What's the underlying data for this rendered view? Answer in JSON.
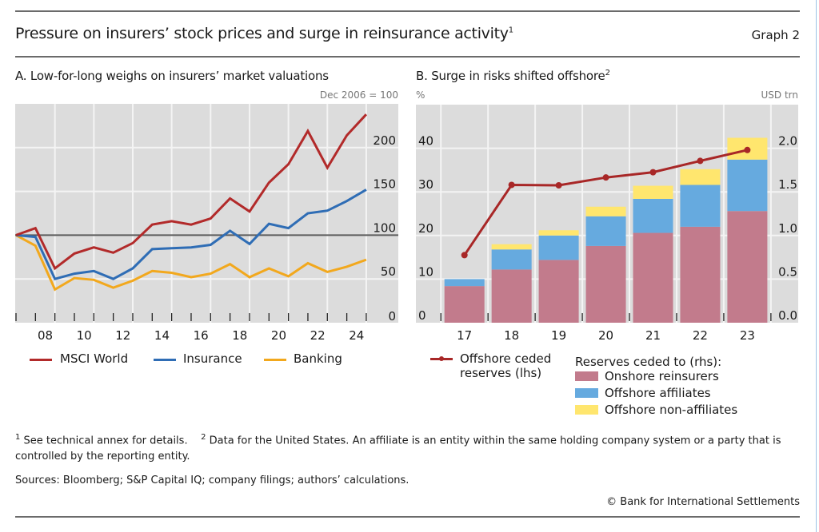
{
  "header": {
    "title": "Pressure on insurers’ stock prices and surge in reinsurance activity",
    "title_footnote": "1",
    "graph_label": "Graph 2"
  },
  "footer": {
    "note1_marker": "1",
    "note1": "See technical annex for details.",
    "note2_marker": "2",
    "note2": "Data for the United States. An affiliate is an entity within the same holding company system or a party that is controlled by the reporting entity.",
    "sources": "Sources: Bloomberg; S&P Capital IQ; company filings; authors’ calculations.",
    "copyright": "© Bank for International Settlements"
  },
  "colors": {
    "plot_bg": "#dcdcdc",
    "grid": "#f4f4f4",
    "msci": "#b22a2a",
    "insurance": "#2f6db5",
    "banking": "#f2a81d",
    "offshore_line": "#a82727",
    "onshore": "#c27b8c",
    "offshore_aff": "#66aadf",
    "offshore_nonaff": "#ffe66e"
  },
  "chart_data": [
    {
      "type": "line",
      "title": "A. Low-for-long weighs on insurers’ market valuations",
      "unit_label": "Dec 2006 = 100",
      "x": [
        "Dec 2006",
        "2007",
        "2008",
        "2009",
        "2010",
        "2011",
        "2012",
        "2013",
        "2014",
        "2015",
        "2016",
        "2017",
        "2018",
        "2019",
        "2020",
        "2021",
        "2022",
        "2023",
        "2024"
      ],
      "xtick_labels": [
        "08",
        "10",
        "12",
        "14",
        "16",
        "18",
        "20",
        "22",
        "24"
      ],
      "yticks": [
        0,
        50,
        100,
        150,
        200
      ],
      "ylim": [
        0,
        250
      ],
      "reference_line": 100,
      "grid": true,
      "legend_position": "bottom",
      "series": [
        {
          "name": "MSCI World",
          "color_key": "msci",
          "values": [
            100,
            108,
            62,
            79,
            86,
            80,
            91,
            112,
            116,
            112,
            119,
            142,
            127,
            160,
            181,
            219,
            177,
            214,
            238
          ]
        },
        {
          "name": "Insurance",
          "color_key": "insurance",
          "values": [
            100,
            98,
            50,
            56,
            59,
            50,
            62,
            84,
            85,
            86,
            89,
            105,
            90,
            113,
            108,
            125,
            128,
            139,
            152
          ]
        },
        {
          "name": "Banking",
          "color_key": "banking",
          "values": [
            100,
            88,
            38,
            51,
            49,
            40,
            48,
            59,
            57,
            52,
            56,
            67,
            52,
            62,
            53,
            68,
            58,
            64,
            72
          ]
        }
      ]
    },
    {
      "type": "bar",
      "stacked": true,
      "title": "B. Surge in risks shifted offshore",
      "title_footnote": "2",
      "left_unit_label": "%",
      "right_unit_label": "USD trn",
      "categories": [
        "17",
        "18",
        "19",
        "20",
        "21",
        "22",
        "23"
      ],
      "ylim_left": [
        0,
        50
      ],
      "yticks_left": [
        0,
        10,
        20,
        30,
        40
      ],
      "ylim_right": [
        0,
        2.5
      ],
      "yticks_right": [
        "0.0",
        "0.5",
        "1.0",
        "1.5",
        "2.0"
      ],
      "grid": true,
      "legend_position": "bottom",
      "legend_group_title": "Reserves ceded to (rhs):",
      "series": [
        {
          "name": "Onshore reinsurers",
          "axis": "right",
          "color_key": "onshore",
          "values": [
            0.42,
            0.61,
            0.72,
            0.88,
            1.03,
            1.1,
            1.28
          ]
        },
        {
          "name": "Offshore affiliates",
          "axis": "right",
          "color_key": "offshore_aff",
          "values": [
            0.08,
            0.23,
            0.28,
            0.34,
            0.39,
            0.48,
            0.59
          ]
        },
        {
          "name": "Offshore non-affiliates",
          "axis": "right",
          "color_key": "offshore_nonaff",
          "values": [
            0.0,
            0.06,
            0.06,
            0.11,
            0.15,
            0.18,
            0.25
          ]
        }
      ],
      "line_series": {
        "name": "Offshore ceded reserves (lhs)",
        "name_line1": "Offshore ceded",
        "name_line2": "reserves (lhs)",
        "axis": "left",
        "color_key": "offshore_line",
        "values": [
          15.5,
          31.6,
          31.5,
          33.3,
          34.5,
          37.1,
          39.6
        ]
      }
    }
  ]
}
